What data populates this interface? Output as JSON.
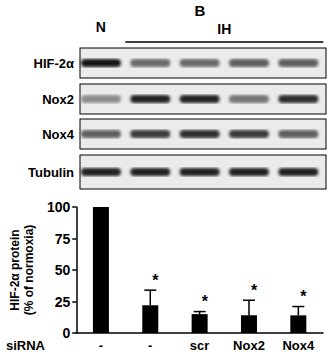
{
  "panel": "B",
  "blot": {
    "lane_groups": [
      {
        "label": "N",
        "lanes": [
          0
        ]
      },
      {
        "label": "IH",
        "lanes": [
          1,
          2,
          3,
          4
        ]
      }
    ],
    "rows": [
      {
        "label": "HIF-2α",
        "intensity": [
          0.9,
          0.55,
          0.55,
          0.6,
          0.6
        ]
      },
      {
        "label": "Nox2",
        "intensity": [
          0.4,
          0.85,
          0.85,
          0.5,
          0.8
        ]
      },
      {
        "label": "Nox4",
        "intensity": [
          0.6,
          0.75,
          0.8,
          0.75,
          0.6
        ]
      },
      {
        "label": "Tubulin",
        "intensity": [
          0.85,
          0.85,
          0.85,
          0.85,
          0.85
        ]
      }
    ]
  },
  "chart_data": {
    "type": "bar",
    "y_label": "HIF-2α protein\n(% of normoxia)",
    "x_label": "siRNA",
    "categories": [
      "-",
      "-",
      "scr",
      "Nox2",
      "Nox4"
    ],
    "values": [
      100,
      22,
      15,
      14,
      14
    ],
    "errors": [
      0,
      12,
      2,
      12,
      7
    ],
    "annotations": [
      null,
      "*",
      "*",
      "*",
      "*"
    ],
    "color": "#000000",
    "ylim": [
      0,
      100
    ],
    "yticks": [
      0,
      25,
      50,
      75,
      100
    ],
    "grid": false
  }
}
